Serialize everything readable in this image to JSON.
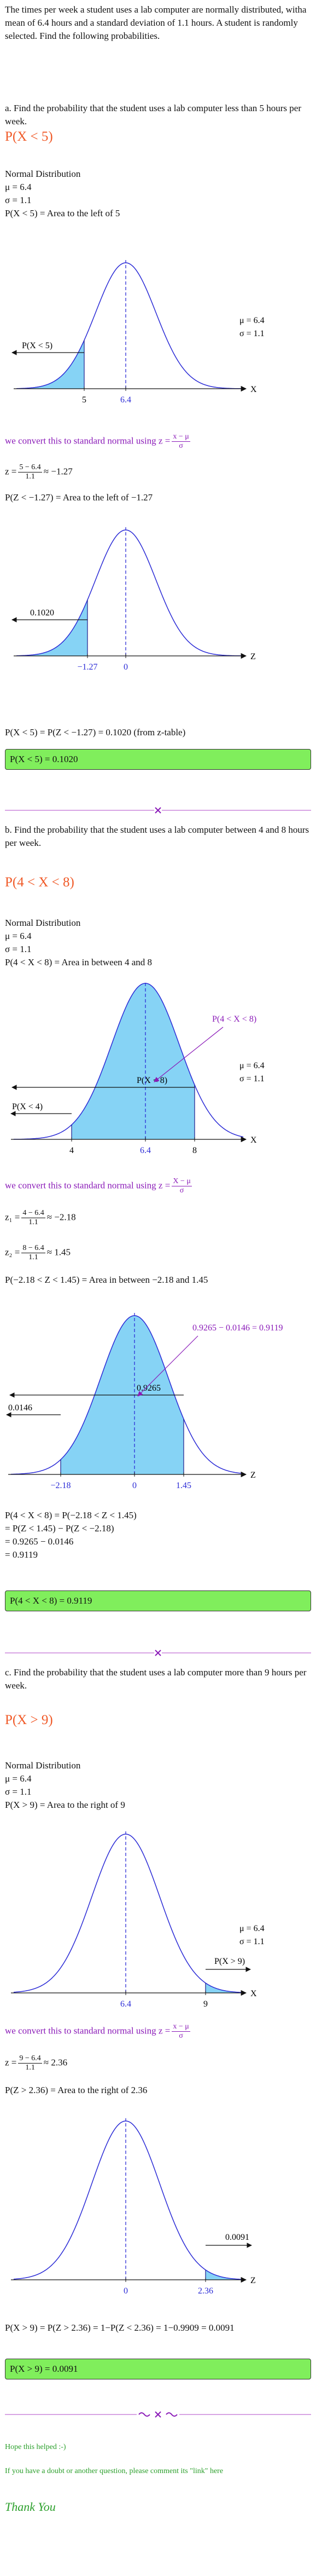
{
  "intro": "The times per week a student uses a lab computer are normally distributed, witha mean of 6.4 hours and a standard deviation of 1.1 hours. A student is randomly selected. Find the following probabilities.",
  "part_a": {
    "question": "a. Find the probability that the student uses a lab computer less than 5 hours per week.",
    "heading": "P(X < 5)",
    "dist": "Normal Distribution",
    "mu": "μ = 6.4",
    "sigma": "σ = 1.1",
    "area": "P(X < 5) = Area to the left of 5",
    "graph1": {
      "label": "P(X < 5)",
      "tick1": "5",
      "mean": "6.4",
      "axis": "X",
      "mu": "μ = 6.4",
      "sigma": "σ = 1.1"
    },
    "convert": {
      "text": "we convert this to standard normal using",
      "lhs": "z =",
      "num": "x − μ",
      "den": "σ"
    },
    "z": {
      "lhs": "z =",
      "num": "5 − 6.4",
      "den": "1.1",
      "rhs": "≈ −1.27"
    },
    "z_area": "P(Z < −1.27) = Area to the left of −1.27",
    "graph2": {
      "label": "0.1020",
      "tick1": "−1.27",
      "mean": "0",
      "axis": "Z"
    },
    "result": "P(X < 5) = P(Z < −1.27) = 0.1020 (from z-table)",
    "answer": "P(X < 5) = 0.1020"
  },
  "part_b": {
    "question": "b. Find the probability that the student uses a lab computer between 4 and 8 hours per week.",
    "heading": "P(4 < X < 8)",
    "dist": "Normal Distribution",
    "mu": "μ = 6.4",
    "sigma": "σ = 1.1",
    "area": "P(4 < X < 8) = Area in between 4 and 8",
    "graph3": {
      "label_between": "P(4 < X < 8)",
      "label_upper": "P(X < 8)",
      "label_lower": "P(X < 4)",
      "tick1": "4",
      "mean": "6.4",
      "tick2": "8",
      "axis": "X",
      "mu": "μ = 6.4",
      "sigma": "σ = 1.1"
    },
    "convert": {
      "text": "we convert this to standard normal using",
      "lhs": "z =",
      "num": "X − μ",
      "den": "σ"
    },
    "z1": {
      "lhs": "z₁ =",
      "num": "4 − 6.4",
      "den": "1.1",
      "rhs": "≈ −2.18"
    },
    "z2": {
      "lhs": "z₂ =",
      "num": "8 − 6.4",
      "den": "1.1",
      "rhs": "≈ 1.45"
    },
    "z_area": "P(−2.18 < Z < 1.45) = Area in between −2.18 and 1.45",
    "graph4": {
      "label_diff": "0.9265 − 0.0146 = 0.9119",
      "label_upper": "0.9265",
      "label_lower": "0.0146",
      "tick1": "−2.18",
      "mean": "0",
      "tick2": "1.45",
      "axis": "Z"
    },
    "result": [
      "P(4 < X < 8) = P(−2.18 < Z < 1.45)",
      "= P(Z < 1.45) − P(Z < −2.18)",
      "= 0.9265 − 0.0146",
      "= 0.9119"
    ],
    "answer": "P(4 < X < 8) = 0.9119"
  },
  "part_c": {
    "question": "c. Find the probability that the student uses a lab computer more than 9 hours per week.",
    "heading": "P(X > 9)",
    "dist": "Normal Distribution",
    "mu": "μ = 6.4",
    "sigma": "σ = 1.1",
    "area": "P(X > 9) = Area to the right of 9",
    "graph5": {
      "label": "P(X > 9)",
      "mean": "6.4",
      "tick1": "9",
      "axis": "X",
      "mu": "μ = 6.4",
      "sigma": "σ = 1.1"
    },
    "convert": {
      "text": "we convert this to standard normal using",
      "lhs": "z =",
      "num": "x − μ",
      "den": "σ"
    },
    "z": {
      "lhs": "z =",
      "num": "9 − 6.4",
      "den": "1.1",
      "rhs": "≈ 2.36"
    },
    "z_area": "P(Z > 2.36) = Area to the right of 2.36",
    "graph6": {
      "label": "0.0091",
      "mean": "0",
      "tick1": "2.36",
      "axis": "Z"
    },
    "result": "P(X > 9) = P(Z > 2.36) = 1−P(Z < 2.36) = 1−0.9909 = 0.0091",
    "answer": "P(X > 9) = 0.0091"
  },
  "footer": {
    "hope": "Hope this helped :-)",
    "note": "If you have a doubt or another question, please comment its \"link\" here",
    "thanks": "Thank You"
  }
}
